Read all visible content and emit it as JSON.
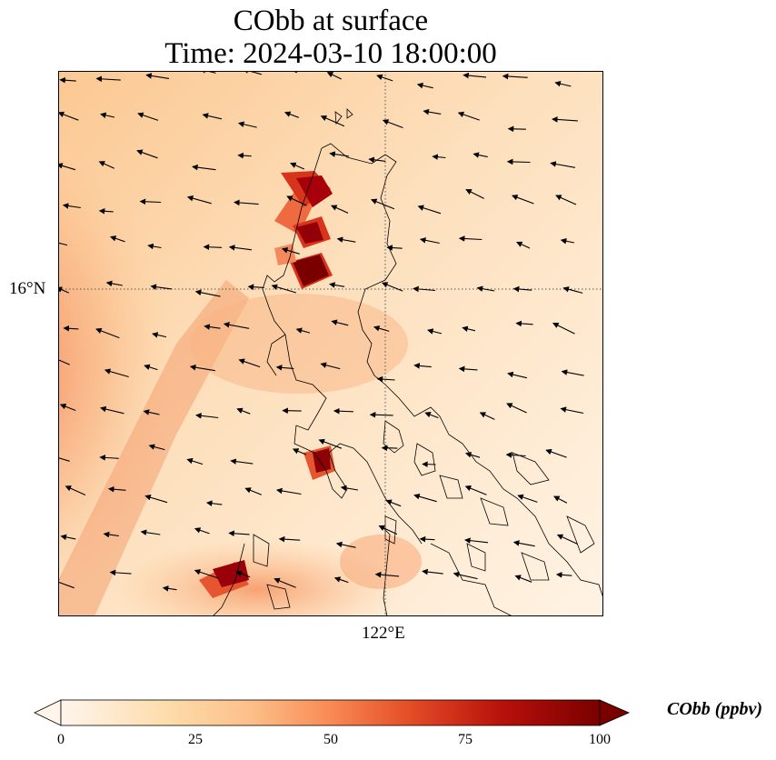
{
  "title": {
    "line1": "CObb at surface",
    "line2": "Time: 2024-03-10 18:00:00"
  },
  "map": {
    "lat_label": "16°N",
    "lon_label": "122°E",
    "colormap": [
      "#fff5eb",
      "#fdd9aa",
      "#fdb97d",
      "#f2703a",
      "#d93a1b",
      "#b0100a",
      "#7a0000"
    ],
    "background_color": "#fddcb0",
    "plumes": [
      {
        "lat_frac": 0.22,
        "lon_frac": 0.45,
        "level": 100
      },
      {
        "lat_frac": 0.3,
        "lon_frac": 0.46,
        "level": 100
      },
      {
        "lat_frac": 0.37,
        "lon_frac": 0.47,
        "level": 100
      },
      {
        "lat_frac": 0.71,
        "lon_frac": 0.48,
        "level": 95
      },
      {
        "lat_frac": 0.92,
        "lon_frac": 0.3,
        "level": 95
      }
    ]
  },
  "colorbar": {
    "ticks": [
      "0",
      "25",
      "50",
      "75",
      "100"
    ],
    "range": [
      0,
      100
    ],
    "label": "CObb (ppbv)",
    "colors": [
      "#fff5eb",
      "#fdd9aa",
      "#fdb97d",
      "#f2703a",
      "#d93a1b",
      "#b0100a",
      "#7a0000"
    ]
  }
}
